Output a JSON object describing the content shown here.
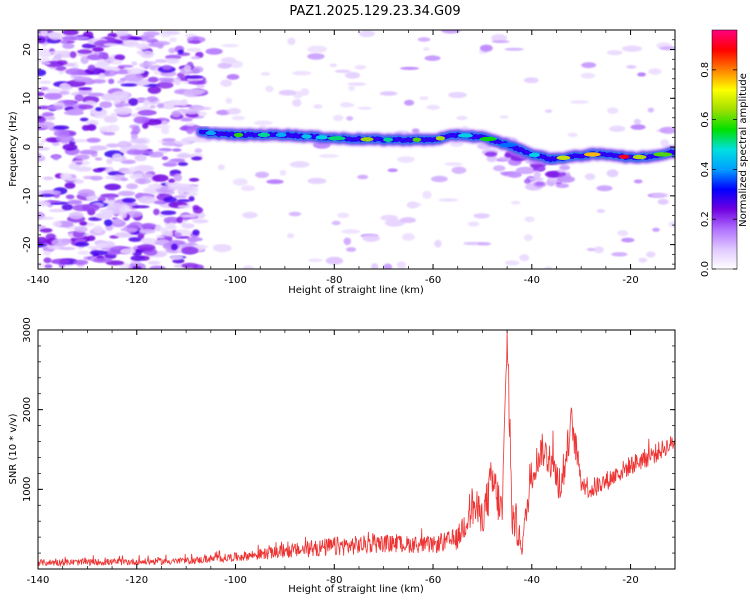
{
  "title": "PAZ1.2025.129.23.34.G09",
  "chart_data": [
    {
      "type": "heatmap",
      "xlabel": "Height of straight line (km)",
      "ylabel": "Frequency (Hz)",
      "xlim": [
        -140,
        -11
      ],
      "ylim": [
        -25,
        24
      ],
      "xticks": [
        -140,
        -120,
        -100,
        -80,
        -60,
        -40,
        -20
      ],
      "xtick_labels": [
        "-140",
        "-120",
        "-100",
        "-80",
        "-60",
        "-40",
        "-20"
      ],
      "yticks": [
        -20,
        -10,
        0,
        10,
        20
      ],
      "ytick_labels": [
        "-20",
        "-10",
        "0",
        "10",
        "20"
      ],
      "noise_region_x": [
        -140,
        -107
      ],
      "ridge": {
        "x": [
          -107,
          -100,
          -90,
          -80,
          -70,
          -60,
          -55,
          -50,
          -45,
          -40,
          -36,
          -32,
          -28,
          -24,
          -20,
          -15,
          -11
        ],
        "freq": [
          3.0,
          2.5,
          2.5,
          1.8,
          1.5,
          1.5,
          2.5,
          2.0,
          0.5,
          -1.5,
          -2.5,
          -2.0,
          -1.5,
          -1.5,
          -2.2,
          -1.8,
          -1.0
        ],
        "amplitude": [
          0.4,
          0.6,
          0.55,
          0.6,
          0.7,
          0.7,
          0.65,
          0.6,
          0.45,
          0.55,
          0.85,
          0.65,
          0.9,
          0.9,
          0.95,
          0.85,
          0.7
        ]
      },
      "colorbar": {
        "label": "Normalized spectral amplitude",
        "range": [
          0,
          0.96
        ],
        "ticks": [
          0.0,
          0.2,
          0.4,
          0.6,
          0.8
        ],
        "tick_labels": [
          "0.0",
          "0.2",
          "0.4",
          "0.6",
          "0.8"
        ],
        "colors": [
          "#ffffff",
          "#e0c8ff",
          "#b070ff",
          "#7000e0",
          "#0000ff",
          "#00a0ff",
          "#00e0e0",
          "#00e000",
          "#a0e000",
          "#ffff00",
          "#ff8000",
          "#ff0000",
          "#ff0080"
        ]
      },
      "grid": false
    },
    {
      "type": "line",
      "xlabel": "Height of straight line (km)",
      "ylabel": "SNR (10 * v/v)",
      "xlim": [
        -140,
        -11
      ],
      "ylim": [
        0,
        3000
      ],
      "xticks": [
        -140,
        -120,
        -100,
        -80,
        -60,
        -40,
        -20
      ],
      "xtick_labels": [
        "-140",
        "-120",
        "-100",
        "-80",
        "-60",
        "-40",
        "-20"
      ],
      "yticks": [
        1000,
        2000,
        3000
      ],
      "ytick_labels": [
        "1000",
        "2000",
        "3000"
      ],
      "color": "#ee3333",
      "envelope": {
        "x": [
          -140,
          -120,
          -110,
          -100,
          -90,
          -80,
          -70,
          -60,
          -55,
          -52,
          -50,
          -48,
          -46,
          -45,
          -44,
          -42,
          -40,
          -38,
          -36,
          -34,
          -32,
          -30,
          -28,
          -25,
          -20,
          -15,
          -11
        ],
        "level": [
          80,
          90,
          100,
          150,
          220,
          280,
          320,
          300,
          380,
          800,
          650,
          1100,
          700,
          2900,
          650,
          300,
          1200,
          1500,
          1350,
          1000,
          1850,
          1100,
          1000,
          1100,
          1300,
          1450,
          1600
        ],
        "spread": [
          60,
          60,
          60,
          80,
          120,
          180,
          160,
          150,
          200,
          400,
          300,
          500,
          350,
          300,
          400,
          200,
          300,
          300,
          350,
          300,
          300,
          200,
          200,
          180,
          180,
          180,
          150
        ]
      },
      "grid": false
    }
  ]
}
